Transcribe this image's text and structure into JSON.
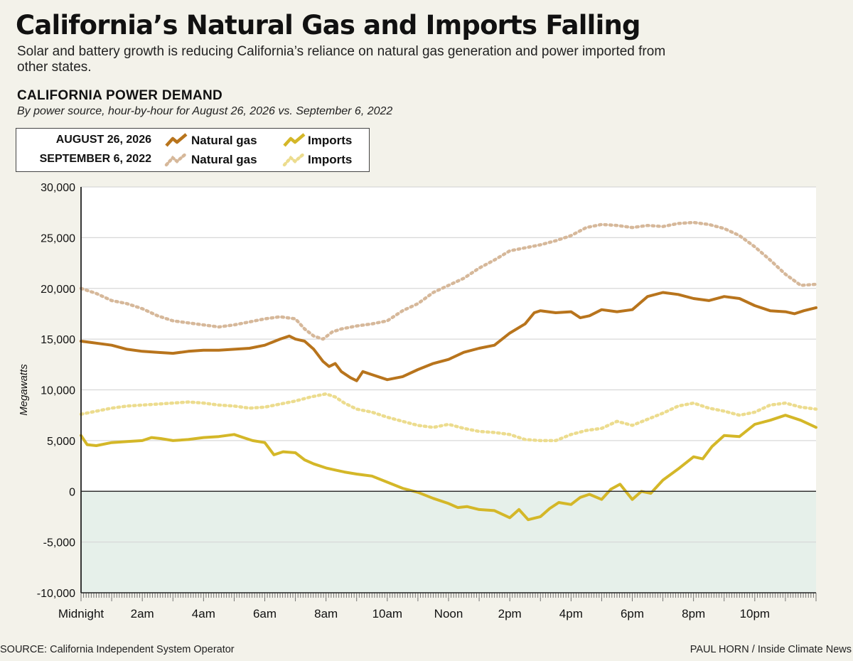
{
  "header": {
    "title": "California’s Natural Gas and Imports Falling",
    "subtitle": "Solar and battery growth is reducing California’s reliance on natural gas generation and power imported from other states.",
    "section_title": "CALIFORNIA POWER DEMAND",
    "section_subtitle": "By power source, hour-by-hour for August 26, 2026 vs. September 6, 2022"
  },
  "legend": {
    "row1_date": "AUGUST 26, 2026",
    "row2_date": "SEPTEMBER 6, 2022",
    "gas_label": "Natural gas",
    "imports_label": "Imports"
  },
  "footer": {
    "source": "SOURCE: California Independent System Operator",
    "credit": "PAUL HORN / Inside Climate News"
  },
  "colors": {
    "gas_2026": "#b8741c",
    "imports_2026": "#d4b728",
    "gas_2022": "#d6b89a",
    "imports_2022": "#ecdc8e",
    "negative_region": "#e6f0ea"
  },
  "chart_data": {
    "type": "line",
    "title": "CALIFORNIA POWER DEMAND",
    "ylabel": "Megawatts",
    "xlabel": "",
    "ylim": [
      -10000,
      30000
    ],
    "xlim": [
      0,
      24
    ],
    "y_ticks": [
      -10000,
      -5000,
      0,
      5000,
      10000,
      15000,
      20000,
      25000,
      30000
    ],
    "y_tick_labels": [
      "-10,000",
      "-5,000",
      "0",
      "5,000",
      "10,000",
      "15,000",
      "20,000",
      "25,000",
      "30,000"
    ],
    "x_ticks": [
      0,
      2,
      4,
      6,
      8,
      10,
      12,
      14,
      16,
      18,
      20,
      22
    ],
    "x_tick_labels": [
      "Midnight",
      "2am",
      "4am",
      "6am",
      "8am",
      "10am",
      "Noon",
      "2pm",
      "4pm",
      "6pm",
      "8pm",
      "10pm"
    ],
    "grid": true,
    "negative_region_shaded": true,
    "series": [
      {
        "name": "Natural gas",
        "date": "AUGUST 26, 2026",
        "style": "solid",
        "x": [
          0,
          0.5,
          1,
          1.5,
          2,
          2.5,
          3,
          3.5,
          4,
          4.5,
          5,
          5.5,
          6,
          6.5,
          6.8,
          7,
          7.3,
          7.6,
          7.9,
          8.1,
          8.3,
          8.5,
          8.8,
          9.0,
          9.2,
          9.5,
          10,
          10.5,
          11,
          11.5,
          12,
          12.5,
          13,
          13.5,
          14,
          14.5,
          14.8,
          15,
          15.5,
          16,
          16.3,
          16.6,
          17,
          17.5,
          18,
          18.5,
          19,
          19.5,
          20,
          20.5,
          21,
          21.5,
          22,
          22.5,
          23,
          23.3,
          23.6,
          24
        ],
        "values": [
          14800,
          14600,
          14400,
          14000,
          13800,
          13700,
          13600,
          13800,
          13900,
          13900,
          14000,
          14100,
          14400,
          15000,
          15300,
          15000,
          14800,
          14000,
          12800,
          12300,
          12600,
          11800,
          11200,
          10900,
          11800,
          11500,
          11000,
          11300,
          12000,
          12600,
          13000,
          13700,
          14100,
          14400,
          15600,
          16500,
          17600,
          17800,
          17600,
          17700,
          17100,
          17300,
          17900,
          17700,
          17900,
          19200,
          19600,
          19400,
          19000,
          18800,
          19200,
          19000,
          18300,
          17800,
          17700,
          17500,
          17800,
          18100
        ]
      },
      {
        "name": "Imports",
        "date": "AUGUST 26, 2026",
        "style": "solid",
        "x": [
          0,
          0.2,
          0.5,
          1,
          1.5,
          2,
          2.3,
          2.6,
          3,
          3.5,
          4,
          4.5,
          5,
          5.3,
          5.6,
          6,
          6.3,
          6.6,
          7,
          7.3,
          7.6,
          8,
          8.3,
          8.6,
          9,
          9.5,
          10,
          10.5,
          11,
          11.5,
          12,
          12.3,
          12.6,
          13,
          13.5,
          14,
          14.3,
          14.6,
          15,
          15.3,
          15.6,
          16,
          16.3,
          16.6,
          17,
          17.3,
          17.6,
          18,
          18.3,
          18.6,
          19,
          19.5,
          20,
          20.3,
          20.6,
          21,
          21.5,
          22,
          22.5,
          23,
          23.5,
          24
        ],
        "values": [
          5500,
          4600,
          4500,
          4800,
          4900,
          5000,
          5300,
          5200,
          5000,
          5100,
          5300,
          5400,
          5600,
          5300,
          5000,
          4800,
          3600,
          3900,
          3800,
          3100,
          2700,
          2300,
          2100,
          1900,
          1700,
          1500,
          900,
          300,
          -100,
          -700,
          -1200,
          -1600,
          -1500,
          -1800,
          -1900,
          -2600,
          -1800,
          -2800,
          -2500,
          -1700,
          -1100,
          -1300,
          -600,
          -300,
          -800,
          200,
          700,
          -800,
          0,
          -200,
          1100,
          2200,
          3400,
          3200,
          4400,
          5500,
          5400,
          6600,
          7000,
          7500,
          7000,
          6300
        ]
      },
      {
        "name": "Natural gas",
        "date": "SEPTEMBER 6, 2022",
        "style": "dotted",
        "x": [
          0,
          0.5,
          1,
          1.5,
          2,
          2.5,
          3,
          3.5,
          4,
          4.5,
          5,
          5.5,
          6,
          6.5,
          7,
          7.3,
          7.6,
          7.9,
          8.2,
          8.5,
          9,
          9.5,
          10,
          10.5,
          11,
          11.5,
          12,
          12.5,
          13,
          13.5,
          14,
          14.5,
          15,
          15.5,
          16,
          16.5,
          17,
          17.5,
          18,
          18.5,
          19,
          19.5,
          20,
          20.5,
          21,
          21.5,
          22,
          22.5,
          23,
          23.5,
          24
        ],
        "values": [
          20000,
          19500,
          18800,
          18500,
          18000,
          17300,
          16800,
          16600,
          16400,
          16200,
          16400,
          16700,
          17000,
          17200,
          17000,
          16000,
          15300,
          15000,
          15700,
          16000,
          16300,
          16500,
          16800,
          17800,
          18500,
          19600,
          20300,
          21000,
          22000,
          22800,
          23700,
          24000,
          24300,
          24700,
          25200,
          26000,
          26300,
          26200,
          26000,
          26200,
          26100,
          26400,
          26500,
          26300,
          25900,
          25200,
          24100,
          22800,
          21400,
          20300,
          20400
        ]
      },
      {
        "name": "Imports",
        "date": "SEPTEMBER 6, 2022",
        "style": "dotted",
        "x": [
          0,
          0.5,
          1,
          1.5,
          2,
          2.5,
          3,
          3.5,
          4,
          4.5,
          5,
          5.5,
          6,
          6.5,
          7,
          7.5,
          8,
          8.3,
          8.6,
          9,
          9.5,
          10,
          10.5,
          11,
          11.5,
          12,
          12.5,
          13,
          13.5,
          14,
          14.5,
          15,
          15.5,
          16,
          16.5,
          17,
          17.5,
          18,
          18.5,
          19,
          19.5,
          20,
          20.5,
          21,
          21.5,
          22,
          22.5,
          23,
          23.5,
          24
        ],
        "values": [
          7600,
          7900,
          8200,
          8400,
          8500,
          8600,
          8700,
          8800,
          8700,
          8500,
          8400,
          8200,
          8300,
          8600,
          8900,
          9300,
          9600,
          9300,
          8700,
          8100,
          7800,
          7300,
          6900,
          6500,
          6300,
          6600,
          6200,
          5900,
          5800,
          5600,
          5100,
          5000,
          5000,
          5600,
          6000,
          6200,
          6900,
          6500,
          7100,
          7700,
          8400,
          8700,
          8200,
          7900,
          7500,
          7800,
          8500,
          8700,
          8300,
          8100
        ]
      }
    ]
  }
}
